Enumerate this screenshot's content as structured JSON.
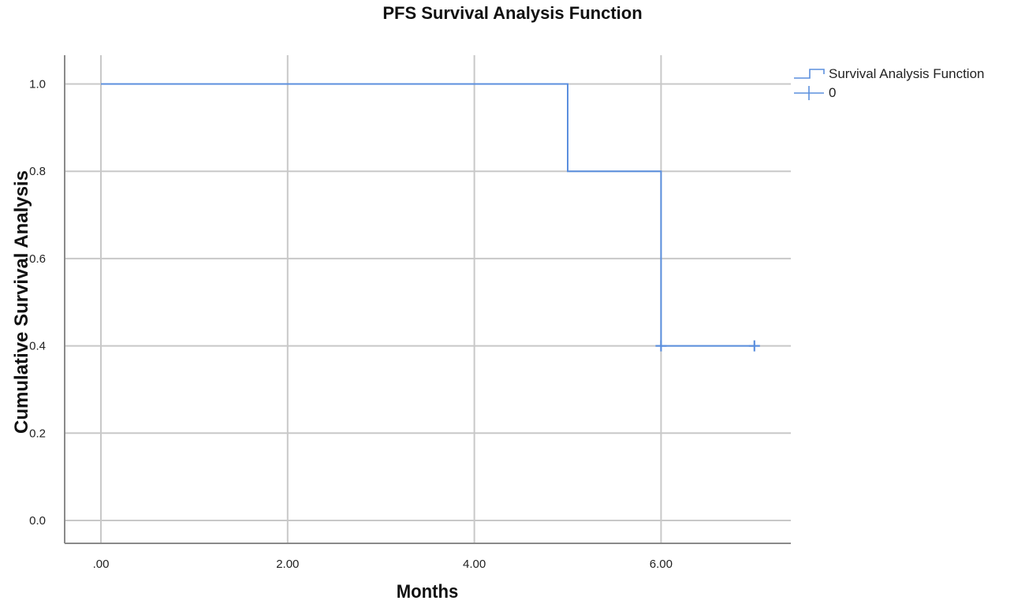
{
  "chart_data": {
    "type": "line",
    "subtype": "kaplan-meier-step",
    "title": "PFS Survival Analysis Function",
    "xlabel": "Months",
    "ylabel": "Cumulative Survival Analysis",
    "xlim": [
      -0.4,
      7.4
    ],
    "ylim": [
      -0.05,
      1.05
    ],
    "x_ticks": [
      0,
      2,
      4,
      6
    ],
    "x_tick_labels": [
      ".00",
      "2.00",
      "4.00",
      "6.00"
    ],
    "y_ticks": [
      0.0,
      0.2,
      0.4,
      0.6,
      0.8,
      1.0
    ],
    "y_tick_labels": [
      "0.0",
      "0.2",
      "0.4",
      "0.6",
      "0.8",
      "1.0"
    ],
    "grid": true,
    "legend_position": "top-right-outside",
    "series": [
      {
        "name": "Survival Analysis Function",
        "color": "#5b8fde",
        "steps": [
          {
            "x": 0.0,
            "y": 1.0
          },
          {
            "x": 5.0,
            "y": 0.8
          },
          {
            "x": 6.0,
            "y": 0.4
          },
          {
            "x": 7.0,
            "y": 0.4
          }
        ],
        "censored": [
          {
            "x": 6.0,
            "y": 0.4
          },
          {
            "x": 7.0,
            "y": 0.4
          }
        ]
      }
    ],
    "legend": [
      {
        "label": "Survival Analysis Function",
        "symbol": "step-line"
      },
      {
        "label": "0",
        "symbol": "censor-plus"
      }
    ]
  },
  "colors": {
    "curve": "#5b8fde",
    "grid": "#c8c8c8",
    "axis": "#8a8a8a"
  }
}
